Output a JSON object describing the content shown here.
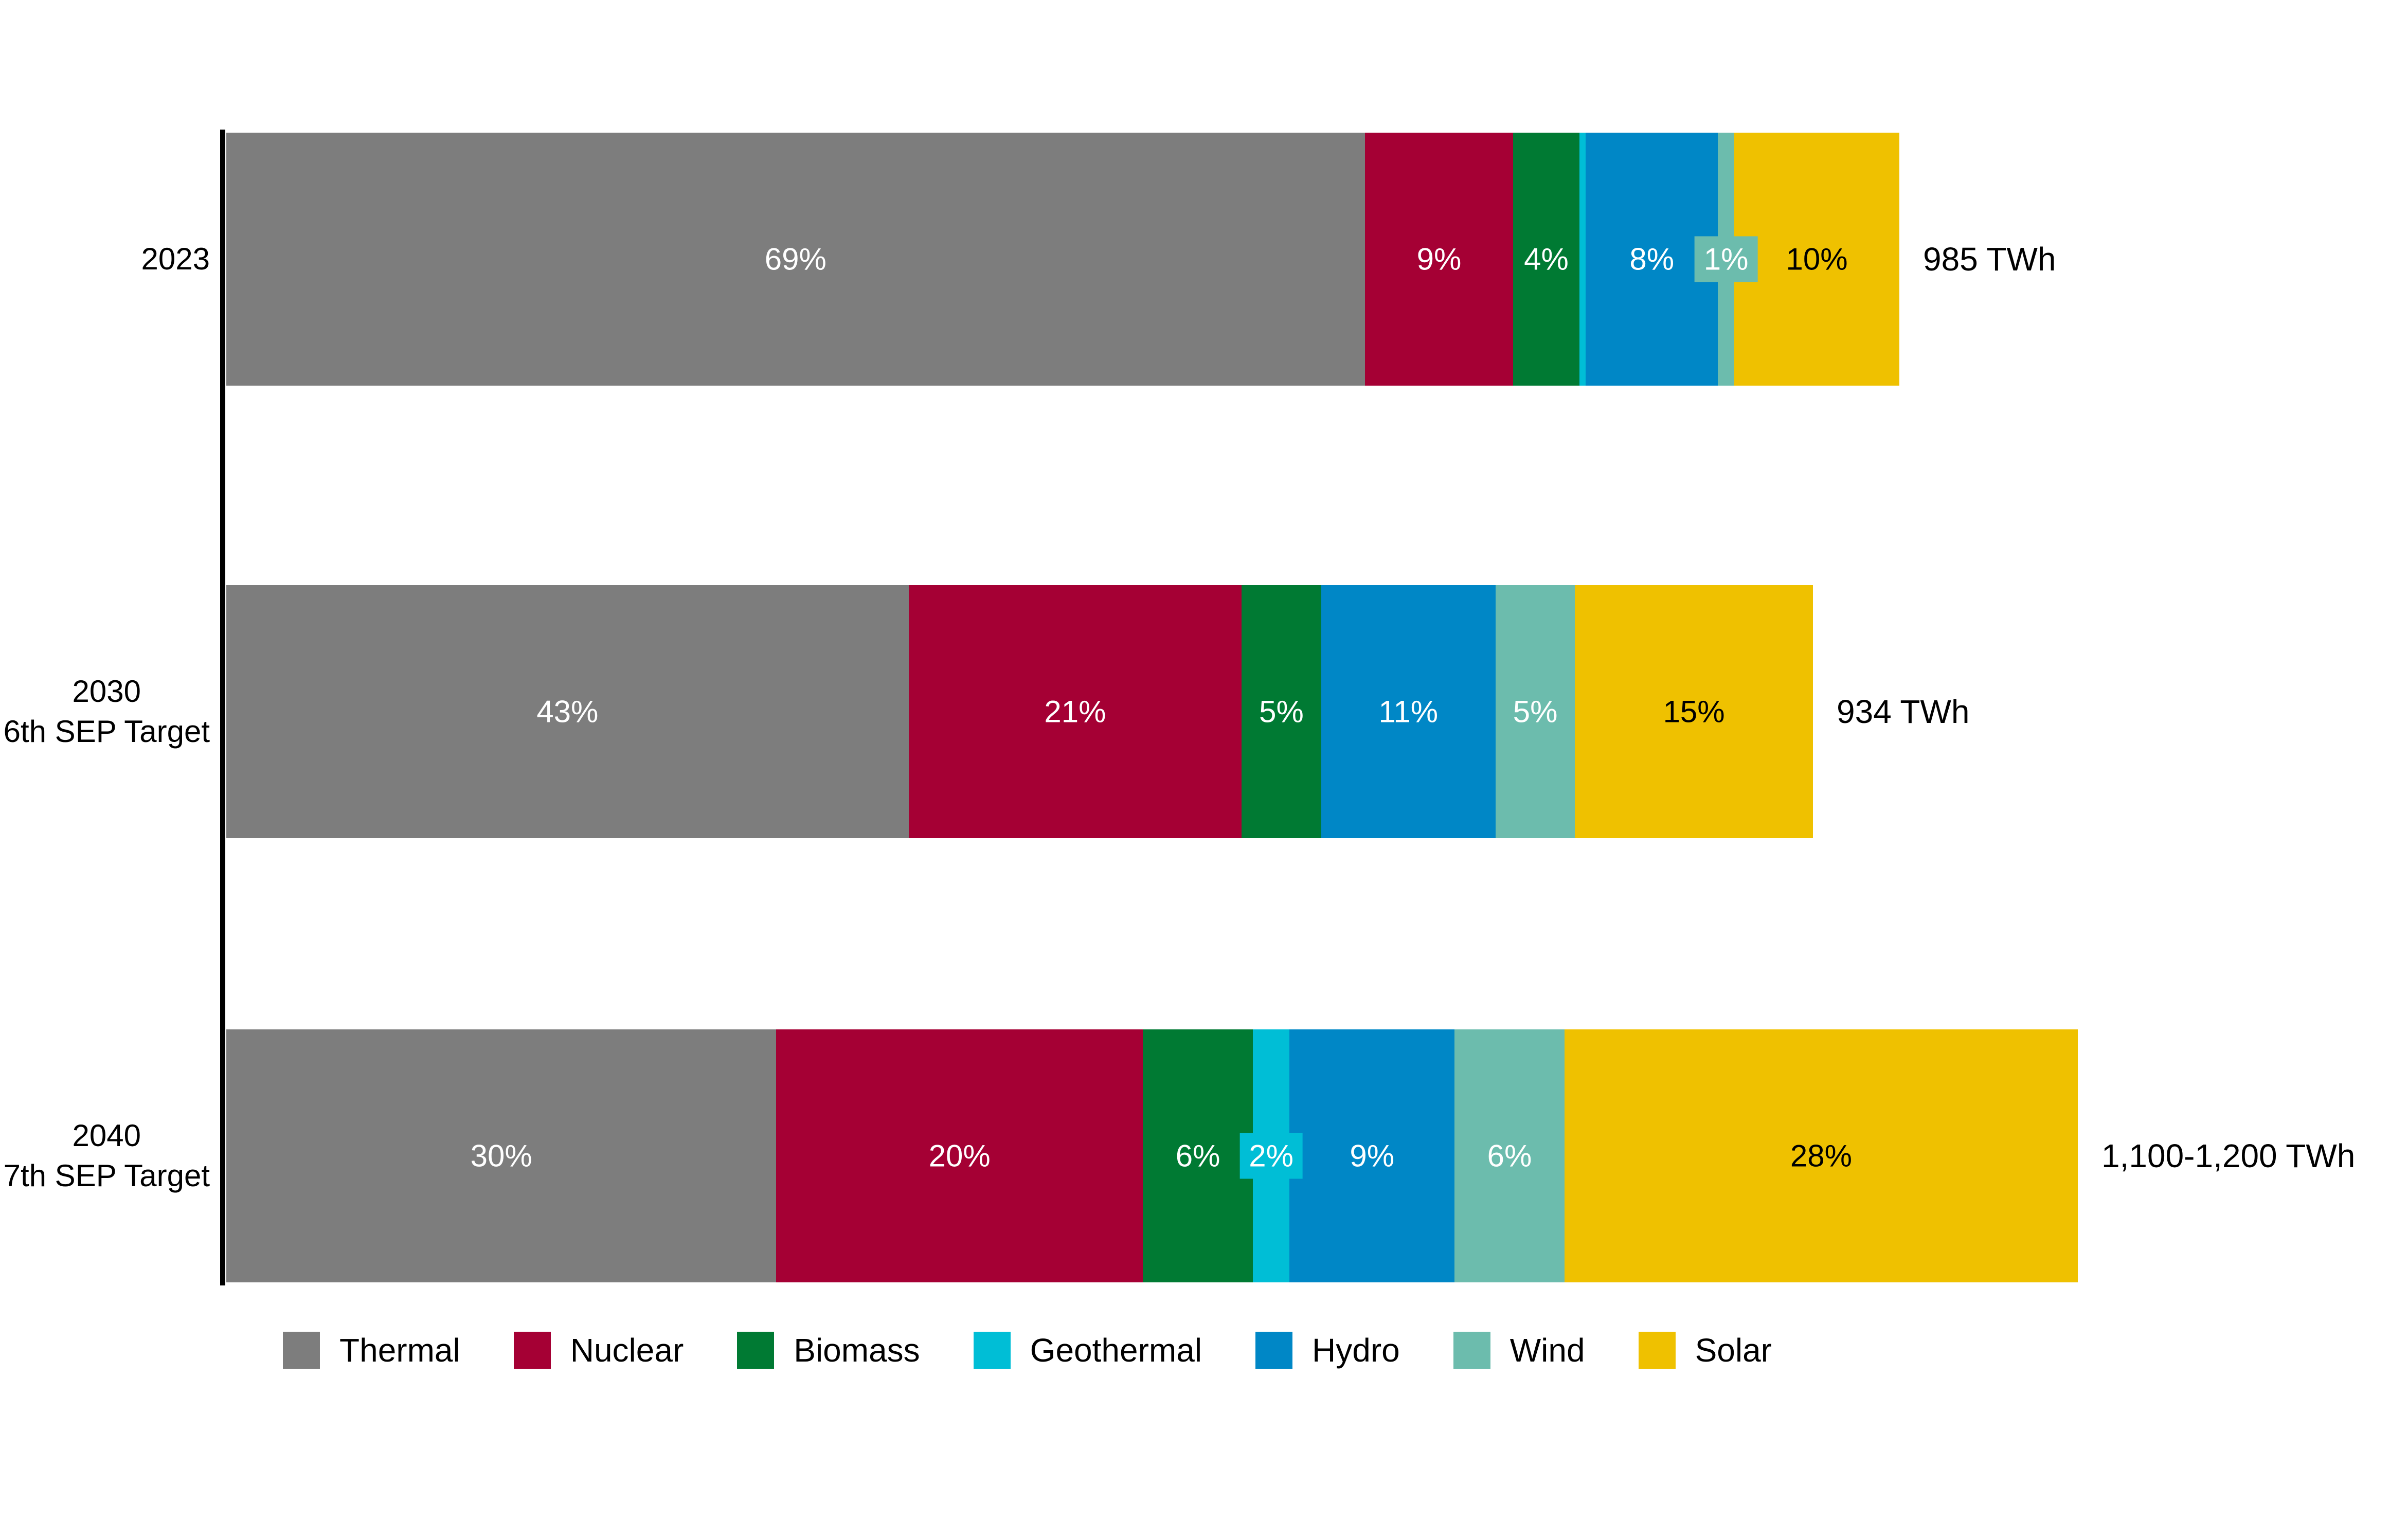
{
  "chart_data": {
    "type": "bar",
    "orientation": "horizontal",
    "stacked": true,
    "unit": "%",
    "background": "#FFFFFF",
    "axis_line_color": "#000000",
    "legend_position": "bottom",
    "grid": false,
    "categories": [
      {
        "id": "2023",
        "label_lines": [
          "2023"
        ],
        "total": "985 TWh",
        "length_rel": 985
      },
      {
        "id": "2030",
        "label_lines": [
          "2030",
          "6th SEP Target"
        ],
        "total": "934 TWh",
        "length_rel": 934
      },
      {
        "id": "2040",
        "label_lines": [
          "2040",
          "7th SEP Target"
        ],
        "total": "1,100-1,200 TWh",
        "length_rel": 1090
      }
    ],
    "series": [
      {
        "name": "Thermal",
        "color": "#7D7D7D",
        "label_color": "#FFFFFF",
        "values": [
          69,
          43,
          30
        ],
        "labels": [
          "69%",
          "43%",
          "30%"
        ],
        "callouts": [
          false,
          false,
          false
        ]
      },
      {
        "name": "Nuclear",
        "color": "#A50034",
        "label_color": "#FFFFFF",
        "values": [
          9,
          21,
          20
        ],
        "labels": [
          "9%",
          "21%",
          "20%"
        ],
        "callouts": [
          false,
          false,
          false
        ]
      },
      {
        "name": "Biomass",
        "color": "#007A33",
        "label_color": "#FFFFFF",
        "values": [
          4,
          5,
          6
        ],
        "labels": [
          "4%",
          "5%",
          "6%"
        ],
        "callouts": [
          false,
          false,
          false
        ]
      },
      {
        "name": "Geothermal",
        "color": "#00BED6",
        "label_color": "#FFFFFF",
        "values": [
          0.4,
          0,
          2
        ],
        "labels": [
          "",
          "",
          "2%"
        ],
        "callouts": [
          false,
          false,
          true
        ]
      },
      {
        "name": "Hydro",
        "color": "#0087C6",
        "label_color": "#FFFFFF",
        "values": [
          8,
          11,
          9
        ],
        "labels": [
          "8%",
          "11%",
          "9%"
        ],
        "callouts": [
          false,
          false,
          false
        ]
      },
      {
        "name": "Wind",
        "color": "#6CBCAD",
        "label_color": "#FFFFFF",
        "values": [
          1,
          5,
          6
        ],
        "labels": [
          "1%",
          "5%",
          "6%"
        ],
        "callouts": [
          true,
          false,
          false
        ]
      },
      {
        "name": "Solar",
        "color": "#EFC100",
        "label_color": "#000000",
        "values": [
          10,
          15,
          28
        ],
        "labels": [
          "10%",
          "15%",
          "28%"
        ],
        "callouts": [
          false,
          false,
          false
        ]
      }
    ]
  }
}
